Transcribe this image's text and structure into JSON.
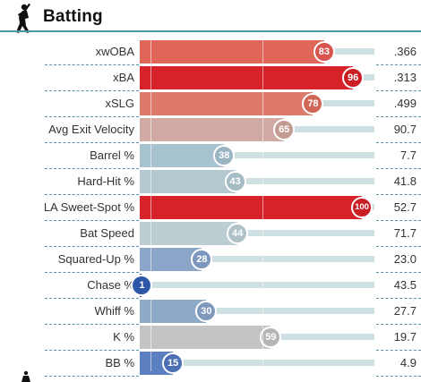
{
  "section": {
    "title": "Batting",
    "icon": "batter-silhouette-icon"
  },
  "colors": {
    "header_rule": "#4a9aa0",
    "track": "#cfe0e3",
    "separator": "#5b8fa8"
  },
  "rows": [
    {
      "label": "xwOBA",
      "percentile": "83",
      "value": ".366",
      "color": "#e0665a",
      "bubble": "#d9534f"
    },
    {
      "label": "xBA",
      "percentile": "96",
      "value": ".313",
      "color": "#d7222a",
      "bubble": "#c81e24"
    },
    {
      "label": "xSLG",
      "percentile": "78",
      "value": ".499",
      "color": "#de7a6c",
      "bubble": "#d06556"
    },
    {
      "label": "Avg Exit Velocity",
      "percentile": "65",
      "value": "90.7",
      "color": "#d0aaa3",
      "bubble": "#c39a92"
    },
    {
      "label": "Barrel %",
      "percentile": "38",
      "value": "7.7",
      "color": "#a8c3d0",
      "bubble": "#9ab4c2"
    },
    {
      "label": "Hard-Hit %",
      "percentile": "43",
      "value": "41.8",
      "color": "#b3c9cf",
      "bubble": "#a6bcc4"
    },
    {
      "label": "LA Sweet-Spot %",
      "percentile": "100",
      "value": "52.7",
      "color": "#d7222a",
      "bubble": "#c81e24"
    },
    {
      "label": "Bat Speed",
      "percentile": "44",
      "value": "71.7",
      "color": "#bcced2",
      "bubble": "#afc2c8"
    },
    {
      "label": "Squared-Up %",
      "percentile": "28",
      "value": "23.0",
      "color": "#8ca6c9",
      "bubble": "#7b97bd"
    },
    {
      "label": "Chase %",
      "percentile": "1",
      "value": "43.5",
      "color": "#2c57a8",
      "bubble": "#2c57a8"
    },
    {
      "label": "Whiff %",
      "percentile": "30",
      "value": "27.7",
      "color": "#8fa9c8",
      "bubble": "#7e99bc"
    },
    {
      "label": "K %",
      "percentile": "59",
      "value": "19.7",
      "color": "#c4c4c4",
      "bubble": "#b5b5b5"
    },
    {
      "label": "BB %",
      "percentile": "15",
      "value": "4.9",
      "color": "#5b7fc0",
      "bubble": "#4a6fb4"
    }
  ]
}
